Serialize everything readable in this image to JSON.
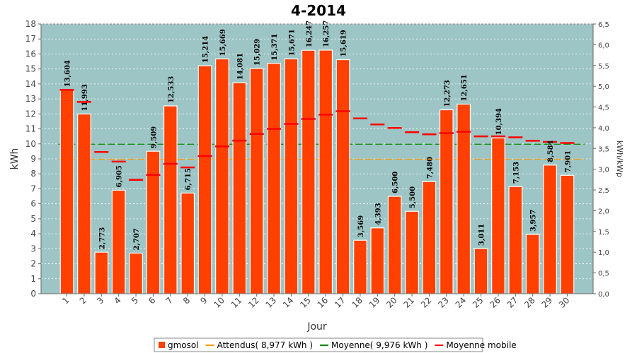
{
  "chart_data": {
    "type": "bar",
    "title": "4-2014",
    "xlabel": "Jour",
    "ylabel": "kWh",
    "y2label": "kWh/kWp",
    "ylim": [
      0,
      18
    ],
    "y2lim": [
      0,
      6.5
    ],
    "yticks": [
      "0",
      "1",
      "2",
      "3",
      "4",
      "5",
      "6",
      "7",
      "8",
      "9",
      "10",
      "11",
      "12",
      "13",
      "14",
      "15",
      "16",
      "17",
      "18"
    ],
    "y2ticks": [
      "0,0",
      "0,5",
      "1,0",
      "1,5",
      "2,0",
      "2,5",
      "3,0",
      "3,5",
      "4,0",
      "4,5",
      "5,0",
      "5,5",
      "6,0",
      "6,5"
    ],
    "categories": [
      "1",
      "2",
      "3",
      "4",
      "5",
      "6",
      "7",
      "8",
      "9",
      "10",
      "11",
      "12",
      "13",
      "14",
      "15",
      "16",
      "17",
      "18",
      "19",
      "20",
      "21",
      "22",
      "23",
      "24",
      "25",
      "26",
      "27",
      "28",
      "29",
      "30"
    ],
    "series": [
      {
        "name": "gmosol",
        "values": [
          13.604,
          11.993,
          2.773,
          6.905,
          2.707,
          9.509,
          12.533,
          6.715,
          15.214,
          15.669,
          14.081,
          15.029,
          15.371,
          15.671,
          16.247,
          16.257,
          15.619,
          3.569,
          4.393,
          6.5,
          5.5,
          7.48,
          12.273,
          12.651,
          3.011,
          10.394,
          7.153,
          3.957,
          8.584,
          7.901
        ],
        "labels": [
          "13,604",
          "11,993",
          "2,773",
          "6,905",
          "2,707",
          "9,509",
          "12,533",
          "6,715",
          "15,214",
          "15,669",
          "14,081",
          "15,029",
          "15,371",
          "15,671",
          "16,247",
          "16,257",
          "15,619",
          "3,569",
          "4,393",
          "6,500",
          "5,500",
          "7,480",
          "12,273",
          "12,651",
          "3,011",
          "10,394",
          "7,153",
          "3,957",
          "8,584",
          "7,901"
        ],
        "color": "#ff4000"
      },
      {
        "name": "Attendus( 8,977 kWh )",
        "value": 8.977,
        "color": "#ff9900"
      },
      {
        "name": "Moyenne( 9,976 kWh )",
        "value": 9.976,
        "color": "#008800"
      },
      {
        "name": "Moyenne mobile",
        "values": [
          13.6,
          12.8,
          9.46,
          8.82,
          7.6,
          7.92,
          8.67,
          8.43,
          9.18,
          9.83,
          10.22,
          10.66,
          11.0,
          11.33,
          11.66,
          11.95,
          12.18,
          11.7,
          11.3,
          11.06,
          10.78,
          10.64,
          10.72,
          10.81,
          10.5,
          10.5,
          10.44,
          10.21,
          10.13,
          10.06
        ],
        "color": "#ff0000"
      }
    ],
    "grid": true,
    "legend_position": "bottom"
  }
}
